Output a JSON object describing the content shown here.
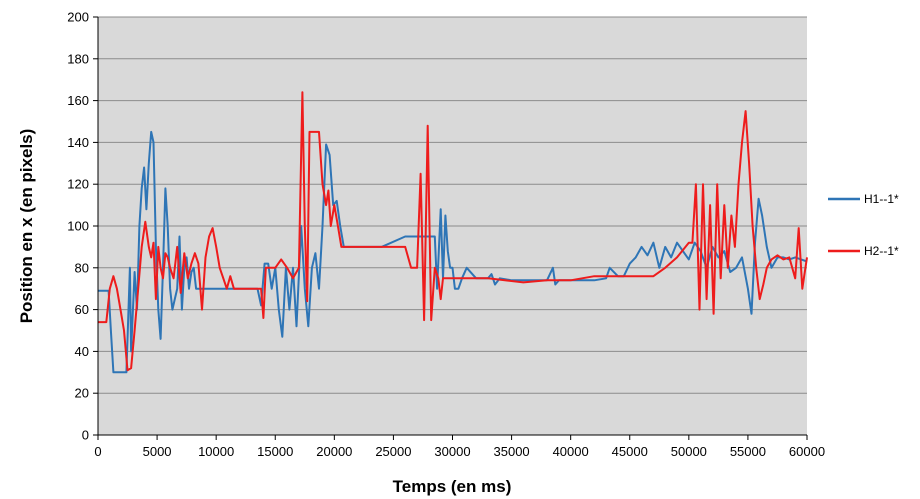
{
  "chart_data": {
    "type": "line",
    "title": "",
    "xlabel": "Temps (en ms)",
    "ylabel": "Position en x (en pixels)",
    "xlim": [
      0,
      60000
    ],
    "ylim": [
      0,
      200
    ],
    "xticks": [
      0,
      5000,
      10000,
      15000,
      20000,
      25000,
      30000,
      35000,
      40000,
      45000,
      50000,
      55000,
      60000
    ],
    "yticks": [
      0,
      20,
      40,
      60,
      80,
      100,
      120,
      140,
      160,
      180,
      200
    ],
    "grid": true,
    "legend_position": "right",
    "plot_background": "#d9d9d9",
    "series": [
      {
        "name": "H1--1*",
        "color": "#2e75b6",
        "x": [
          0,
          900,
          1100,
          1300,
          2400,
          2700,
          2800,
          3100,
          3300,
          3500,
          3700,
          3900,
          4100,
          4300,
          4500,
          4700,
          4900,
          5100,
          5300,
          5500,
          5700,
          5900,
          6100,
          6300,
          6500,
          6700,
          6900,
          7100,
          7300,
          7500,
          7700,
          7900,
          8100,
          8300,
          8500,
          9000,
          10000,
          12000,
          13500,
          13800,
          14100,
          14400,
          14700,
          15000,
          15300,
          15600,
          15900,
          16200,
          16500,
          16800,
          17200,
          17500,
          17800,
          18100,
          18400,
          18700,
          19000,
          19300,
          19600,
          19900,
          20200,
          20500,
          20800,
          21100,
          21400,
          22000,
          24000,
          26000,
          26100,
          28500,
          28700,
          29000,
          29200,
          29400,
          29600,
          29800,
          30000,
          30200,
          30500,
          30800,
          31200,
          32000,
          33000,
          33300,
          33600,
          34000,
          35000,
          36000,
          38000,
          38500,
          38700,
          39000,
          40000,
          42000,
          43000,
          43300,
          44000,
          44500,
          45000,
          45500,
          46000,
          46500,
          47000,
          47500,
          48000,
          48500,
          49000,
          49500,
          50000,
          50500,
          51000,
          51500,
          52000,
          52500,
          53000,
          53500,
          54000,
          54500,
          55000,
          55300,
          55600,
          55900,
          56200,
          56600,
          57000,
          57500,
          58000,
          58500,
          59000,
          59500,
          60000
        ],
        "y": [
          69,
          69,
          49,
          30,
          30,
          80,
          40,
          78,
          60,
          100,
          118,
          128,
          108,
          130,
          145,
          140,
          90,
          60,
          46,
          80,
          118,
          100,
          70,
          60,
          65,
          70,
          95,
          60,
          80,
          85,
          70,
          78,
          80,
          70,
          70,
          70,
          70,
          70,
          70,
          62,
          82,
          82,
          70,
          80,
          60,
          47,
          80,
          60,
          80,
          52,
          100,
          70,
          52,
          80,
          87,
          70,
          100,
          139,
          134,
          110,
          112,
          100,
          90,
          90,
          90,
          90,
          90,
          95,
          95,
          95,
          70,
          108,
          75,
          105,
          88,
          80,
          80,
          70,
          70,
          75,
          80,
          75,
          75,
          77,
          72,
          75,
          74,
          74,
          74,
          80,
          72,
          74,
          74,
          74,
          75,
          80,
          76,
          76,
          82,
          85,
          90,
          86,
          92,
          80,
          90,
          85,
          92,
          88,
          84,
          92,
          88,
          80,
          90,
          85,
          88,
          78,
          80,
          85,
          70,
          58,
          92,
          113,
          105,
          90,
          80,
          85,
          85,
          84,
          85,
          84,
          83
        ]
      },
      {
        "name": "H2--1*",
        "color": "#ee1c1c",
        "x": [
          0,
          700,
          1000,
          1300,
          1600,
          1900,
          2200,
          2500,
          2800,
          3100,
          3400,
          3700,
          4000,
          4300,
          4500,
          4700,
          4900,
          5100,
          5300,
          5500,
          5700,
          5900,
          6100,
          6400,
          6700,
          7000,
          7300,
          7600,
          7900,
          8200,
          8500,
          8800,
          9100,
          9400,
          9700,
          10000,
          10300,
          10600,
          10900,
          11200,
          11500,
          12000,
          13800,
          14000,
          14200,
          14500,
          15000,
          15500,
          16000,
          16500,
          17000,
          17300,
          17500,
          17700,
          17900,
          18100,
          18400,
          18700,
          19000,
          19300,
          19500,
          19700,
          20000,
          20300,
          20600,
          21000,
          21500,
          22000,
          24000,
          26000,
          26500,
          27000,
          27300,
          27600,
          27900,
          28200,
          28500,
          28800,
          29000,
          29200,
          30000,
          33000,
          36000,
          38000,
          40000,
          42000,
          45000,
          47000,
          48000,
          49000,
          50000,
          50300,
          50600,
          50900,
          51200,
          51500,
          51800,
          52100,
          52400,
          52700,
          53000,
          53300,
          53600,
          53900,
          54200,
          54500,
          54800,
          55100,
          55400,
          55700,
          56000,
          56300,
          56600,
          57000,
          57500,
          58000,
          58500,
          59000,
          59300,
          59600,
          60000
        ],
        "y": [
          54,
          54,
          70,
          76,
          70,
          60,
          50,
          31,
          32,
          50,
          70,
          90,
          102,
          90,
          85,
          92,
          65,
          90,
          80,
          75,
          87,
          85,
          80,
          75,
          90,
          68,
          87,
          75,
          82,
          87,
          82,
          60,
          85,
          95,
          99,
          90,
          80,
          75,
          70,
          76,
          70,
          70,
          70,
          56,
          80,
          80,
          80,
          84,
          80,
          75,
          80,
          164,
          100,
          64,
          145,
          145,
          145,
          145,
          120,
          110,
          117,
          100,
          110,
          100,
          90,
          90,
          90,
          90,
          90,
          90,
          80,
          80,
          125,
          55,
          148,
          55,
          80,
          75,
          65,
          75,
          75,
          75,
          73,
          74,
          74,
          76,
          76,
          76,
          80,
          85,
          92,
          92,
          120,
          60,
          120,
          65,
          110,
          58,
          120,
          75,
          110,
          80,
          105,
          90,
          120,
          140,
          155,
          130,
          100,
          80,
          65,
          72,
          80,
          84,
          86,
          84,
          85,
          75,
          99,
          70,
          85
        ]
      }
    ]
  }
}
